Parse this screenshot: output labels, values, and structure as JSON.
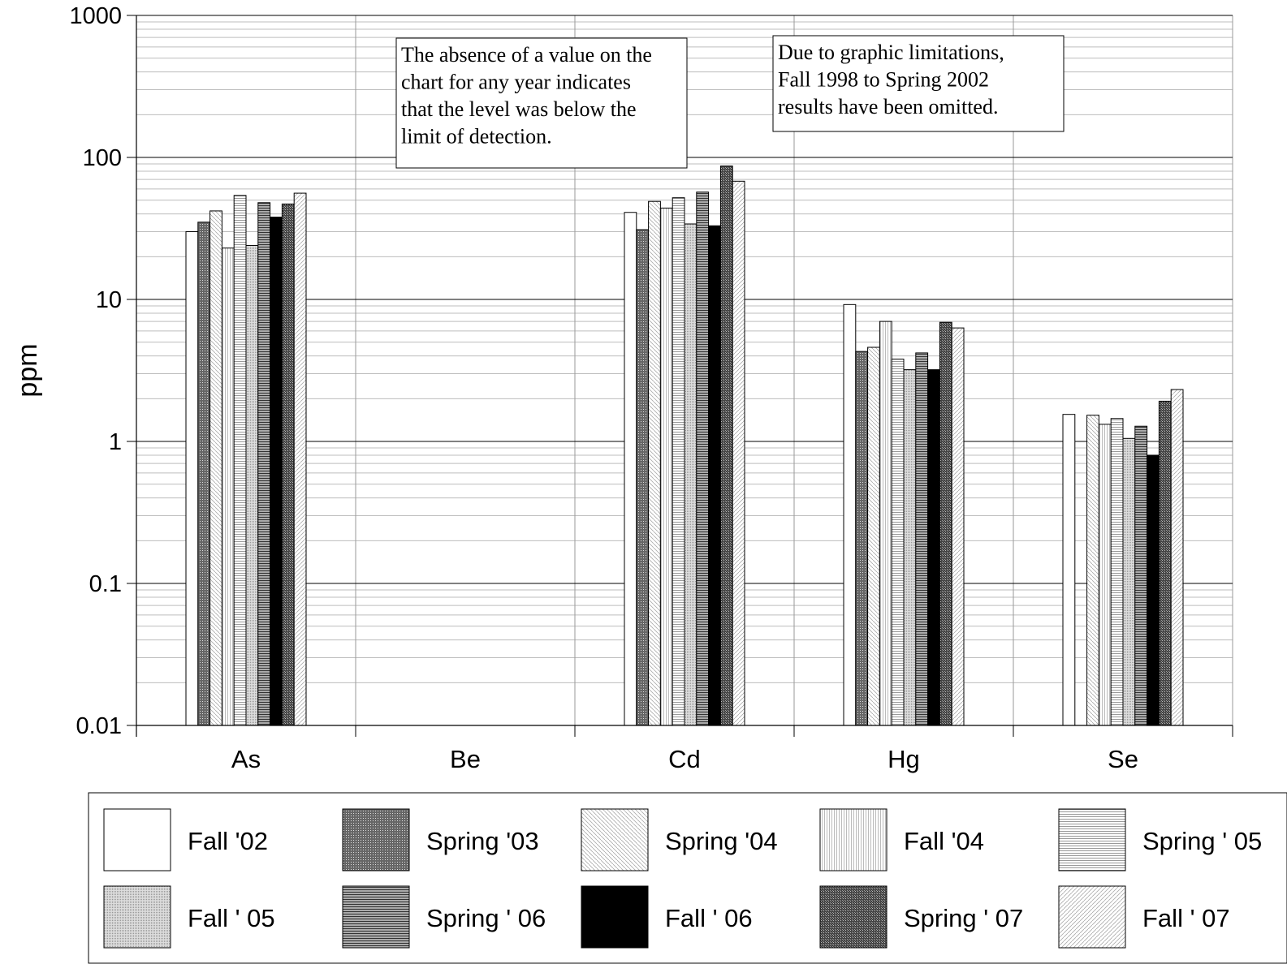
{
  "chart_data": {
    "type": "bar",
    "scale": "log",
    "ylabel": "ppm",
    "ylim": [
      0.01,
      1000
    ],
    "y_ticks": [
      {
        "value": 1000,
        "label": "1000"
      },
      {
        "value": 100,
        "label": "100"
      },
      {
        "value": 10,
        "label": "10"
      },
      {
        "value": 1,
        "label": "1"
      },
      {
        "value": 0.1,
        "label": "0.1"
      },
      {
        "value": 0.01,
        "label": "0.01"
      }
    ],
    "grid": true,
    "legend_position": "bottom",
    "categories": [
      "As",
      "Be",
      "Cd",
      "Hg",
      "Se"
    ],
    "series": [
      {
        "name": "Fall '02",
        "values": [
          30,
          null,
          41,
          9.2,
          1.55
        ]
      },
      {
        "name": "Spring '03",
        "values": [
          35,
          null,
          31,
          4.3,
          null
        ]
      },
      {
        "name": "Spring '04",
        "values": [
          42,
          null,
          49,
          4.6,
          1.53
        ]
      },
      {
        "name": "Fall '04",
        "values": [
          23,
          null,
          44,
          7.0,
          1.32
        ]
      },
      {
        "name": "Spring ' 05",
        "values": [
          54,
          null,
          52,
          3.8,
          1.45
        ]
      },
      {
        "name": "Fall ' 05",
        "values": [
          24,
          null,
          34,
          3.2,
          1.05
        ]
      },
      {
        "name": "Spring ' 06",
        "values": [
          48,
          null,
          57,
          4.2,
          1.28
        ]
      },
      {
        "name": "Fall ' 06",
        "values": [
          38,
          null,
          33,
          3.2,
          0.8
        ]
      },
      {
        "name": "Spring ' 07",
        "values": [
          47,
          null,
          87,
          6.9,
          1.92
        ]
      },
      {
        "name": "Fall ' 07",
        "values": [
          56,
          null,
          68,
          6.3,
          2.32
        ]
      }
    ],
    "annotations": [
      {
        "id": "detection",
        "lines": [
          "The absence of a value on the",
          "chart for any year indicates",
          "that the level was below the",
          "limit of detection."
        ]
      },
      {
        "id": "omitted",
        "lines": [
          "Due to graphic limitations,",
          "Fall  1998 to Spring 2002",
          "results have been omitted."
        ]
      }
    ]
  }
}
